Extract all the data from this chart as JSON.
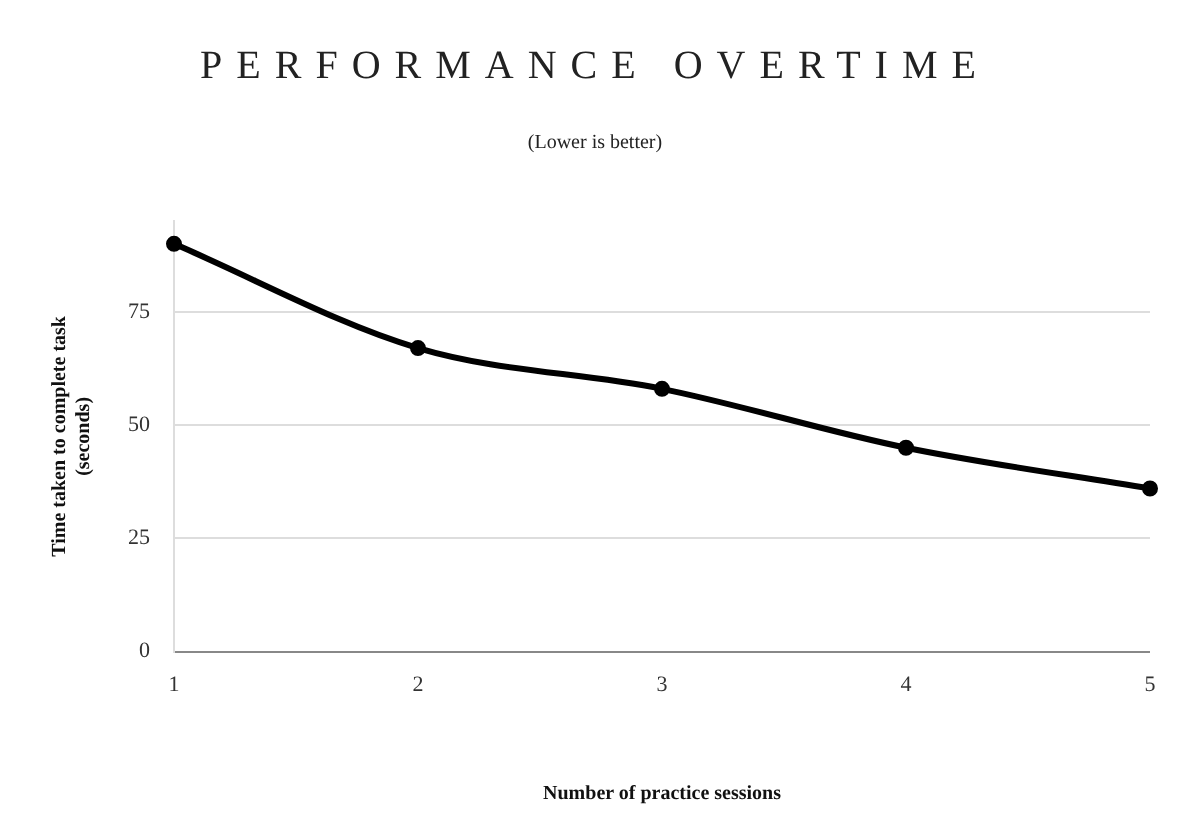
{
  "chart_data": {
    "type": "line",
    "title": "PERFORMANCE OVERTIME",
    "subtitle": "(Lower is better)",
    "xlabel": "Number of practice sessions",
    "ylabel": "Time taken to complete task (seconds)",
    "categories": [
      "1",
      "2",
      "3",
      "4",
      "5"
    ],
    "series": [
      {
        "color": "#000000",
        "values": [
          90,
          67,
          58,
          45,
          36
        ]
      }
    ],
    "ylim": [
      0,
      95
    ],
    "yticks": [
      0,
      25,
      50,
      75
    ],
    "grid": "y",
    "marker": "circle",
    "line_style": "solid",
    "legend": false
  }
}
